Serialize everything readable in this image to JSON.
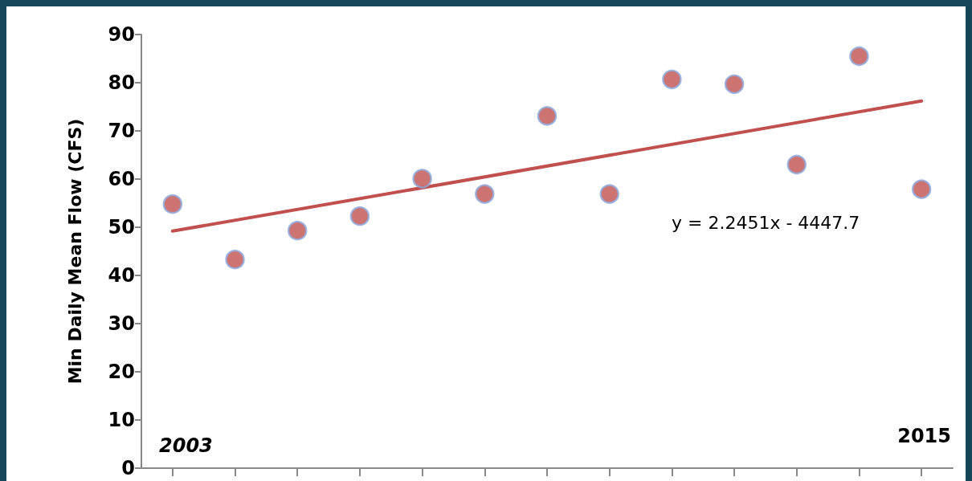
{
  "chart_data": {
    "type": "scatter",
    "ylabel": "Min Daily Mean Flow (CFS)",
    "categories": [
      null,
      null,
      null,
      null,
      null,
      null,
      null,
      null,
      null,
      null,
      null,
      null,
      null
    ],
    "series": [
      {
        "color": "#c0504d",
        "marker": "circle",
        "values": [
          54.8,
          43.3,
          49.3,
          52.3,
          60.1,
          56.9,
          73.1,
          56.9,
          80.7,
          79.7,
          63.0,
          85.5,
          57.9
        ]
      },
      {
        "type": "line",
        "color": "#c0504d",
        "marker": "none",
        "line_style": "solid",
        "values": [
          49.2,
          null,
          null,
          null,
          null,
          null,
          null,
          null,
          null,
          null,
          null,
          null,
          76.2
        ]
      }
    ],
    "ylim": [
      0,
      90
    ],
    "yticks": [
      0,
      10,
      20,
      30,
      40,
      50,
      60,
      70,
      80,
      90
    ],
    "tick_labels": "y",
    "annotations": [
      "2003",
      "2015",
      "y = 2.2451x - 4447.7"
    ]
  }
}
